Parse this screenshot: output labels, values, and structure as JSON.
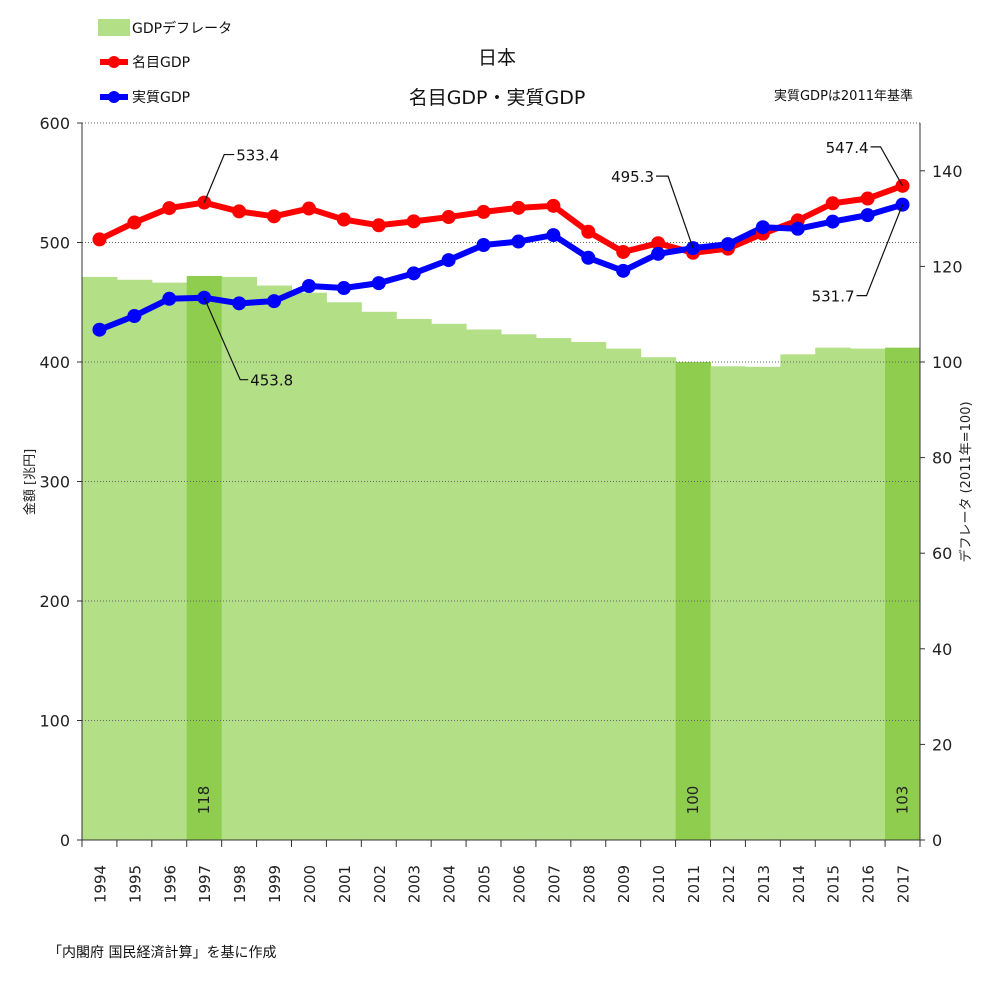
{
  "chart_data": {
    "type": "bar+line",
    "title": "日本",
    "subtitle": "名目GDP・実質GDP",
    "note": "実質GDPは2011年基準",
    "source": "「内閣府 国民経済計算」を基に作成",
    "left_axis": {
      "label": "金額 [兆円]",
      "ticks": [
        "0",
        "100",
        "200",
        "300",
        "400",
        "500",
        "600"
      ],
      "ylim": [
        0,
        600
      ]
    },
    "right_axis": {
      "label": "デフレータ (2011年=100)",
      "ticks": [
        "0",
        "20",
        "40",
        "60",
        "80",
        "100",
        "120",
        "140"
      ],
      "ylim": [
        0,
        150
      ]
    },
    "categories": [
      "1994",
      "1995",
      "1996",
      "1997",
      "1998",
      "1999",
      "2000",
      "2001",
      "2002",
      "2003",
      "2004",
      "2005",
      "2006",
      "2007",
      "2008",
      "2009",
      "2010",
      "2011",
      "2012",
      "2013",
      "2014",
      "2015",
      "2016",
      "2017"
    ],
    "legend": {
      "deflator": "GDPデフレータ",
      "nominal": "名目GDP",
      "real": "実質GDP"
    },
    "colors": {
      "deflator": "#b3df87",
      "deflator_highlight": "#8fcd4f",
      "nominal": "#ff0000",
      "real": "#0000ff"
    },
    "series": [
      {
        "name": "GDPデフレータ",
        "axis": "right",
        "values": [
          117.8,
          117.2,
          116.6,
          118.0,
          117.8,
          116.0,
          114.5,
          112.5,
          110.5,
          109.0,
          108.0,
          106.8,
          105.8,
          105.0,
          104.2,
          102.8,
          101.0,
          100.0,
          99.1,
          99.0,
          101.6,
          103.0,
          102.8,
          103.0
        ]
      },
      {
        "name": "名目GDP",
        "axis": "left",
        "values": [
          502.6,
          516.7,
          528.8,
          533.4,
          526.0,
          521.9,
          528.4,
          519.2,
          514.4,
          517.7,
          521.3,
          525.6,
          529.0,
          530.7,
          509.0,
          492.1,
          499.4,
          491.4,
          494.9,
          507.4,
          518.5,
          532.8,
          536.8,
          547.4
        ]
      },
      {
        "name": "実質GDP",
        "axis": "left",
        "values": [
          427.0,
          438.5,
          452.9,
          453.8,
          449.1,
          450.9,
          463.6,
          461.9,
          466.0,
          474.2,
          485.3,
          497.9,
          500.8,
          506.2,
          487.2,
          476.3,
          490.5,
          495.3,
          498.6,
          512.8,
          511.5,
          517.5,
          522.9,
          531.7
        ]
      }
    ],
    "highlight_bars": [
      {
        "category": "1997",
        "label": "118"
      },
      {
        "category": "2011",
        "label": "100"
      },
      {
        "category": "2017",
        "label": "103"
      }
    ],
    "annotations": [
      {
        "series": "名目GDP",
        "category": "1997",
        "text": "533.4"
      },
      {
        "series": "実質GDP",
        "category": "1997",
        "text": "453.8"
      },
      {
        "series": "実質GDP",
        "category": "2011",
        "text": "495.3"
      },
      {
        "series": "名目GDP",
        "category": "2017",
        "text": "547.4"
      },
      {
        "series": "実質GDP",
        "category": "2017",
        "text": "531.7"
      }
    ]
  }
}
